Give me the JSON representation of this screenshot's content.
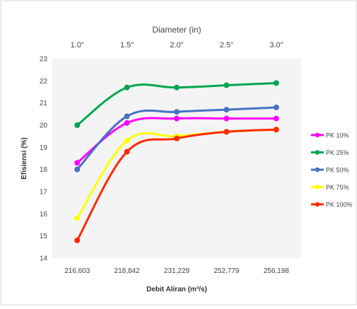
{
  "chart_data": {
    "type": "line",
    "title": "",
    "xlabel": "Debit Aliran (m³/s)",
    "ylabel": "Efisiensi (%)",
    "top_axis_label": "Diameter (in)",
    "categories": [
      "216,603",
      "218,842",
      "231,229",
      "252,779",
      "256,198"
    ],
    "top_categories": [
      "1.0\"",
      "1.5\"",
      "2.0\"",
      "2.5\"",
      "3.0\""
    ],
    "ylim": [
      14,
      23
    ],
    "yticks": [
      14,
      15,
      16,
      17,
      18,
      19,
      20,
      21,
      22,
      23
    ],
    "grid": false,
    "legend_position": "right",
    "series": [
      {
        "name": "PK 10%",
        "color": "#ff00ff",
        "values": [
          18.3,
          20.1,
          20.3,
          20.3,
          20.3
        ]
      },
      {
        "name": "PK 25%",
        "color": "#00a651",
        "values": [
          20.0,
          21.7,
          21.7,
          21.8,
          21.9
        ]
      },
      {
        "name": "PK 50%",
        "color": "#4472c4",
        "values": [
          18.0,
          20.4,
          20.6,
          20.7,
          20.8
        ]
      },
      {
        "name": "PK 75%",
        "color": "#ffff00",
        "values": [
          15.8,
          19.3,
          19.5,
          19.7,
          19.8
        ]
      },
      {
        "name": "PK 100%",
        "color": "#ff2a00",
        "values": [
          14.8,
          18.8,
          19.4,
          19.7,
          19.8
        ]
      }
    ]
  }
}
